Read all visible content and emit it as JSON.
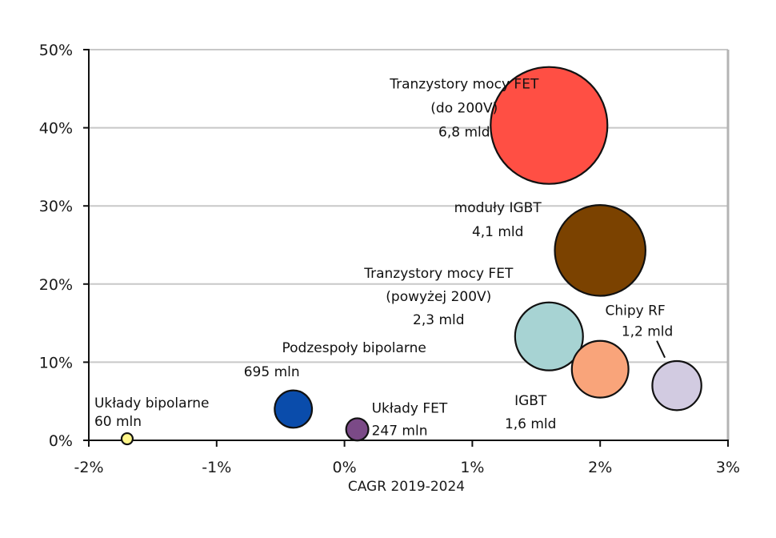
{
  "chart_data": {
    "type": "scatter",
    "subtype": "bubble",
    "title": "",
    "xlabel": "CAGR 2019-2024",
    "ylabel": "",
    "xlim": [
      -0.02,
      0.03
    ],
    "ylim": [
      0,
      0.5
    ],
    "x_ticks": [
      -0.02,
      -0.01,
      0,
      0.01,
      0.02,
      0.03
    ],
    "x_tick_labels": [
      "-2%",
      "-1%",
      "0%",
      "1%",
      "2%",
      "3%"
    ],
    "y_ticks": [
      0,
      0.1,
      0.2,
      0.3,
      0.4,
      0.5
    ],
    "y_tick_labels": [
      "0%",
      "10%",
      "20%",
      "30%",
      "40%",
      "50%"
    ],
    "grid": "horizontal",
    "legend": "none",
    "series": [
      {
        "name": "Tranzystory mocy FET (do 200V)",
        "x": 0.016,
        "y": 0.403,
        "size_label": "6,8 mld",
        "size_value": 6.8,
        "color": "#FF4F44",
        "label_lines": [
          "Tranzystory mocy FET",
          "(do 200V)",
          "6,8 mld"
        ],
        "label_anchor": "left"
      },
      {
        "name": "moduły IGBT",
        "x": 0.02,
        "y": 0.243,
        "size_label": "4,1 mld",
        "size_value": 4.1,
        "color": "#7B4200",
        "label_lines": [
          "moduły IGBT",
          "4,1 mld"
        ],
        "label_anchor": "left"
      },
      {
        "name": "Tranzystory mocy FET (powyżej 200V)",
        "x": 0.016,
        "y": 0.133,
        "size_label": "2,3 mld",
        "size_value": 2.3,
        "color": "#A7D3D3",
        "label_lines": [
          "Tranzystory mocy FET",
          "(powyżej 200V)",
          "2,3 mld"
        ],
        "label_anchor": "left"
      },
      {
        "name": "IGBT",
        "x": 0.02,
        "y": 0.091,
        "size_label": "1,6 mld",
        "size_value": 1.6,
        "color": "#F9A47A",
        "label_lines": [
          "IGBT",
          "1,6 mld"
        ],
        "label_anchor": "below-left"
      },
      {
        "name": "Chipy RF",
        "x": 0.026,
        "y": 0.07,
        "size_label": "1,2 mld",
        "size_value": 1.2,
        "color": "#D2CBE1",
        "label_lines": [
          "Chipy RF",
          "1,2 mld"
        ],
        "label_anchor": "above-left",
        "leader_line": true
      },
      {
        "name": "Podzespoły bipolarne",
        "x": -0.004,
        "y": 0.04,
        "size_label": "695 mln",
        "size_value": 0.695,
        "color": "#0A4CAB",
        "label_lines": [
          "Podzespoły bipolarne",
          "695 mln"
        ],
        "label_anchor": "above"
      },
      {
        "name": "Układy FET",
        "x": 0.001,
        "y": 0.014,
        "size_label": "247 mln",
        "size_value": 0.247,
        "color": "#7B4A87",
        "label_lines": [
          "Układy FET",
          "247 mln"
        ],
        "label_anchor": "right"
      },
      {
        "name": "Układy bipolarne",
        "x": -0.017,
        "y": 0.002,
        "size_label": "60 mln",
        "size_value": 0.06,
        "color": "#FFF68A",
        "label_lines": [
          "Układy bipolarne",
          "60 mln"
        ],
        "label_anchor": "above"
      }
    ]
  }
}
